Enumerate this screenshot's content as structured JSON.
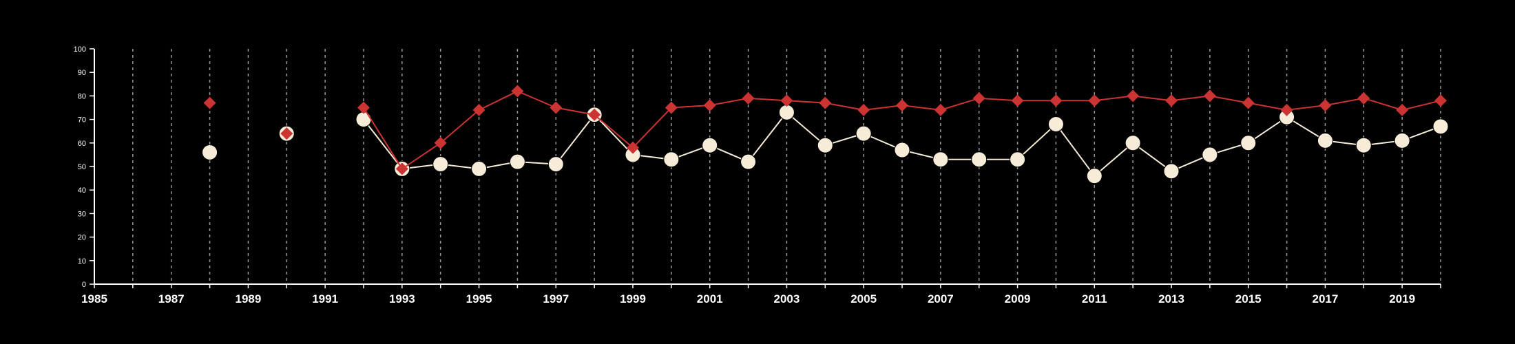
{
  "chart_data": {
    "type": "line",
    "title": "",
    "xlabel": "",
    "ylabel": "",
    "xlim": [
      1985,
      2020
    ],
    "ylim": [
      0,
      100
    ],
    "x_ticks": [
      1985,
      1987,
      1989,
      1991,
      1993,
      1995,
      1997,
      1999,
      2001,
      2003,
      2005,
      2007,
      2009,
      2011,
      2013,
      2015,
      2017,
      2019
    ],
    "y_ticks": [
      0,
      10,
      20,
      30,
      40,
      50,
      60,
      70,
      80,
      90,
      100
    ],
    "grid": "vertical dashed lines at every year",
    "legend": "none",
    "background": "#000000",
    "series": [
      {
        "color": "#cc3333",
        "marker": "diamond",
        "points": [
          {
            "x": 1988,
            "y": 77
          },
          {
            "x": 1990,
            "y": 64
          },
          {
            "x": 1992,
            "y": 75
          },
          {
            "x": 1993,
            "y": 49
          },
          {
            "x": 1994,
            "y": 60
          },
          {
            "x": 1995,
            "y": 74
          },
          {
            "x": 1996,
            "y": 82
          },
          {
            "x": 1997,
            "y": 75
          },
          {
            "x": 1998,
            "y": 72
          },
          {
            "x": 1999,
            "y": 58
          },
          {
            "x": 2000,
            "y": 75
          },
          {
            "x": 2001,
            "y": 76
          },
          {
            "x": 2002,
            "y": 79
          },
          {
            "x": 2003,
            "y": 78
          },
          {
            "x": 2004,
            "y": 77
          },
          {
            "x": 2005,
            "y": 74
          },
          {
            "x": 2006,
            "y": 76
          },
          {
            "x": 2007,
            "y": 74
          },
          {
            "x": 2008,
            "y": 79
          },
          {
            "x": 2009,
            "y": 78
          },
          {
            "x": 2010,
            "y": 78
          },
          {
            "x": 2011,
            "y": 78
          },
          {
            "x": 2012,
            "y": 80
          },
          {
            "x": 2013,
            "y": 78
          },
          {
            "x": 2014,
            "y": 80
          },
          {
            "x": 2015,
            "y": 77
          },
          {
            "x": 2016,
            "y": 74
          },
          {
            "x": 2017,
            "y": 76
          },
          {
            "x": 2018,
            "y": 79
          },
          {
            "x": 2019,
            "y": 74
          },
          {
            "x": 2020,
            "y": 78
          }
        ]
      },
      {
        "color": "#f7ecd8",
        "marker": "circle",
        "points": [
          {
            "x": 1988,
            "y": 56
          },
          {
            "x": 1990,
            "y": 64
          },
          {
            "x": 1992,
            "y": 70
          },
          {
            "x": 1993,
            "y": 49
          },
          {
            "x": 1994,
            "y": 51
          },
          {
            "x": 1995,
            "y": 49
          },
          {
            "x": 1996,
            "y": 52
          },
          {
            "x": 1997,
            "y": 51
          },
          {
            "x": 1998,
            "y": 72
          },
          {
            "x": 1999,
            "y": 55
          },
          {
            "x": 2000,
            "y": 53
          },
          {
            "x": 2001,
            "y": 59
          },
          {
            "x": 2002,
            "y": 52
          },
          {
            "x": 2003,
            "y": 73
          },
          {
            "x": 2004,
            "y": 59
          },
          {
            "x": 2005,
            "y": 64
          },
          {
            "x": 2006,
            "y": 57
          },
          {
            "x": 2007,
            "y": 53
          },
          {
            "x": 2008,
            "y": 53
          },
          {
            "x": 2009,
            "y": 53
          },
          {
            "x": 2010,
            "y": 68
          },
          {
            "x": 2011,
            "y": 46
          },
          {
            "x": 2012,
            "y": 60
          },
          {
            "x": 2013,
            "y": 48
          },
          {
            "x": 2014,
            "y": 55
          },
          {
            "x": 2015,
            "y": 60
          },
          {
            "x": 2016,
            "y": 71
          },
          {
            "x": 2017,
            "y": 61
          },
          {
            "x": 2018,
            "y": 59
          },
          {
            "x": 2019,
            "y": 61
          },
          {
            "x": 2020,
            "y": 67
          }
        ]
      }
    ]
  }
}
